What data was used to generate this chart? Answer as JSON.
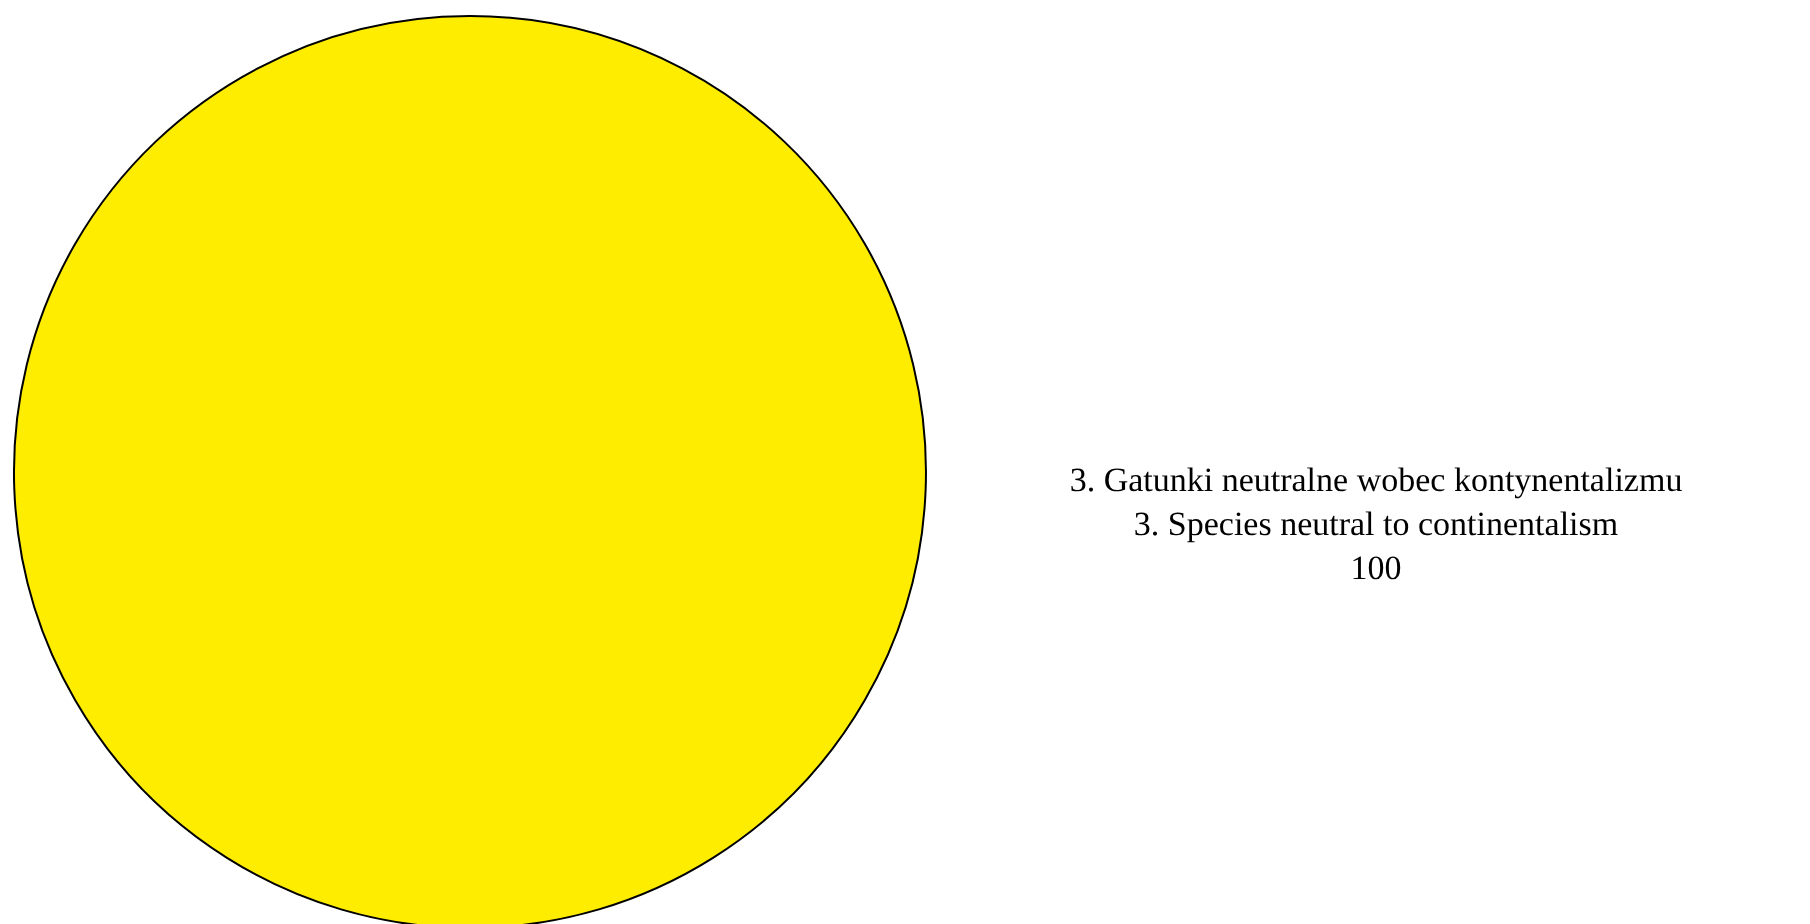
{
  "chart_data": {
    "type": "pie",
    "categories": [
      "3. Gatunki neutralne wobec kontynentalizmu\n3. Species neutral to continentalism"
    ],
    "values": [
      100
    ],
    "colors": [
      "#ffed00"
    ],
    "data_labels": true,
    "legend": false
  }
}
